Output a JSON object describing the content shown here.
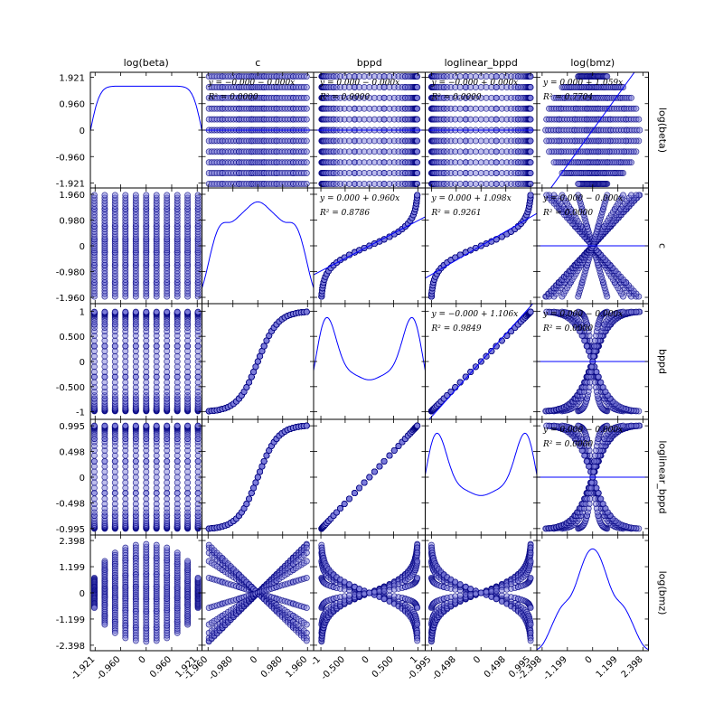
{
  "chart_data": {
    "type": "scatter",
    "layout": "scatter-matrix",
    "variables": [
      "log(beta)",
      "c",
      "bppd",
      "loglinear_bppd",
      "log(bmz)"
    ],
    "colors": {
      "marker_fill": "#7b7bd9",
      "marker_edge": "#00007f",
      "line": "#0000ff"
    },
    "axes": [
      {
        "name": "log(beta)",
        "range": [
          -2.1,
          2.1
        ],
        "ticks": [
          -1.921,
          -0.96,
          0,
          0.96,
          1.921
        ],
        "tick_labels": [
          "-1.921",
          "-0.960",
          "0",
          "0.960",
          "1.921"
        ]
      },
      {
        "name": "c",
        "range": [
          -2.2,
          2.2
        ],
        "ticks": [
          -1.96,
          -0.98,
          0,
          0.98,
          1.96
        ],
        "tick_labels": [
          "-1.960",
          "-0.980",
          "0",
          "0.980",
          "1.960"
        ]
      },
      {
        "name": "bppd",
        "range": [
          -1.15,
          1.15
        ],
        "ticks": [
          -1,
          -0.5,
          0,
          0.5,
          1
        ],
        "tick_labels": [
          "-1",
          "-0.500",
          "0",
          "0.500",
          "1"
        ]
      },
      {
        "name": "loglinear_bppd",
        "range": [
          -1.12,
          1.12
        ],
        "ticks": [
          -0.995,
          -0.498,
          0,
          0.498,
          0.995
        ],
        "tick_labels": [
          "-0.995",
          "-0.498",
          "0",
          "0.498",
          "0.995"
        ]
      },
      {
        "name": "log(bmz)",
        "range": [
          -2.65,
          2.65
        ],
        "ticks": [
          -2.398,
          -1.199,
          0,
          1.199,
          2.398
        ],
        "tick_labels": [
          "-2.398",
          "-1.199",
          "0",
          "1.199",
          "2.398"
        ]
      }
    ],
    "regressions": [
      {
        "row": 0,
        "col": 1,
        "equation": "y = −0.000 − 0.000x",
        "r2": "R² = 0.0000",
        "slope": 0
      },
      {
        "row": 0,
        "col": 2,
        "equation": "y = 0.000 − 0.000x",
        "r2": "R² = 0.0000",
        "slope": 0
      },
      {
        "row": 0,
        "col": 3,
        "equation": "y = −0.000 + 0.000x",
        "r2": "R² = 0.0000",
        "slope": 0
      },
      {
        "row": 0,
        "col": 4,
        "equation": "y = 0.000 + 1.059x",
        "r2": "R² = 0.7704",
        "slope": 1.059
      },
      {
        "row": 1,
        "col": 2,
        "equation": "y = 0.000 + 0.960x",
        "r2": "R² = 0.8786",
        "slope": 0.96
      },
      {
        "row": 1,
        "col": 3,
        "equation": "y = 0.000 + 1.098x",
        "r2": "R² = 0.9261",
        "slope": 1.098
      },
      {
        "row": 1,
        "col": 4,
        "equation": "y = 0.000 − 0.000x",
        "r2": "R² = 0.0000",
        "slope": 0
      },
      {
        "row": 2,
        "col": 3,
        "equation": "y = −0.000 + 1.106x",
        "r2": "R² = 0.9849",
        "slope": 1.106
      },
      {
        "row": 2,
        "col": 4,
        "equation": "y = 0.000 − 0.000x",
        "r2": "R² = 0.0000",
        "slope": 0
      },
      {
        "row": 3,
        "col": 4,
        "equation": "y = 0.000 − 0.000x",
        "r2": "R² = 0.0000",
        "slope": 0
      }
    ],
    "grid": false,
    "legend": "none"
  }
}
